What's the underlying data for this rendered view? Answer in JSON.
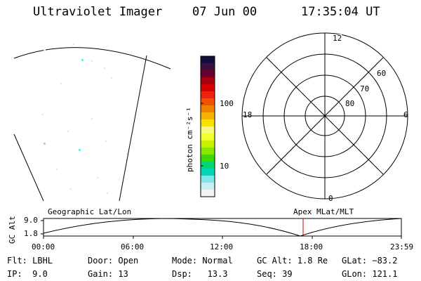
{
  "header": {
    "title": "Ultraviolet Imager",
    "date": "07 Jun 00",
    "time": "17:35:04 UT"
  },
  "colorbar": {
    "label": "photon cm⁻²s⁻¹",
    "tick_100": "100",
    "tick_10": "10",
    "colors": [
      "#101040",
      "#3a1040",
      "#6a0030",
      "#aa0010",
      "#d80000",
      "#f02010",
      "#f05000",
      "#f08000",
      "#f8b000",
      "#f8e000",
      "#f8f880",
      "#f0ff30",
      "#c8f000",
      "#88e800",
      "#40d800",
      "#00d870",
      "#00d8b8",
      "#80e8e8",
      "#c8f0f0",
      "#f0f4f4"
    ]
  },
  "polar": {
    "label_12": "12",
    "label_18": "18",
    "label_6": "6",
    "label_0": "0",
    "lat_60": "60",
    "lat_70": "70",
    "lat_80": "80"
  },
  "map_labels": {
    "left": "Geographic Lat/Lon",
    "right": "Apex MLat/MLT"
  },
  "altitude_plot": {
    "ylabel": "GC Alt",
    "ytick_top": "9.0",
    "ytick_bottom": "1.8",
    "xticks": [
      "00:00",
      "06:00",
      "12:00",
      "18:00",
      "23:59"
    ],
    "current_time_marker_color": "#cc0000"
  },
  "footer": {
    "flt": "Flt: LBHL",
    "ip": "IP:  9.0",
    "door": "Door: Open",
    "gain": "Gain: 13",
    "mode": "Mode: Normal",
    "dsp": "Dsp:   13.3",
    "gcalt": "GC Alt: 1.8 Re",
    "seq": "Seq: 39",
    "glat": "GLat: −83.2",
    "glon": "GLon: 121.1"
  }
}
